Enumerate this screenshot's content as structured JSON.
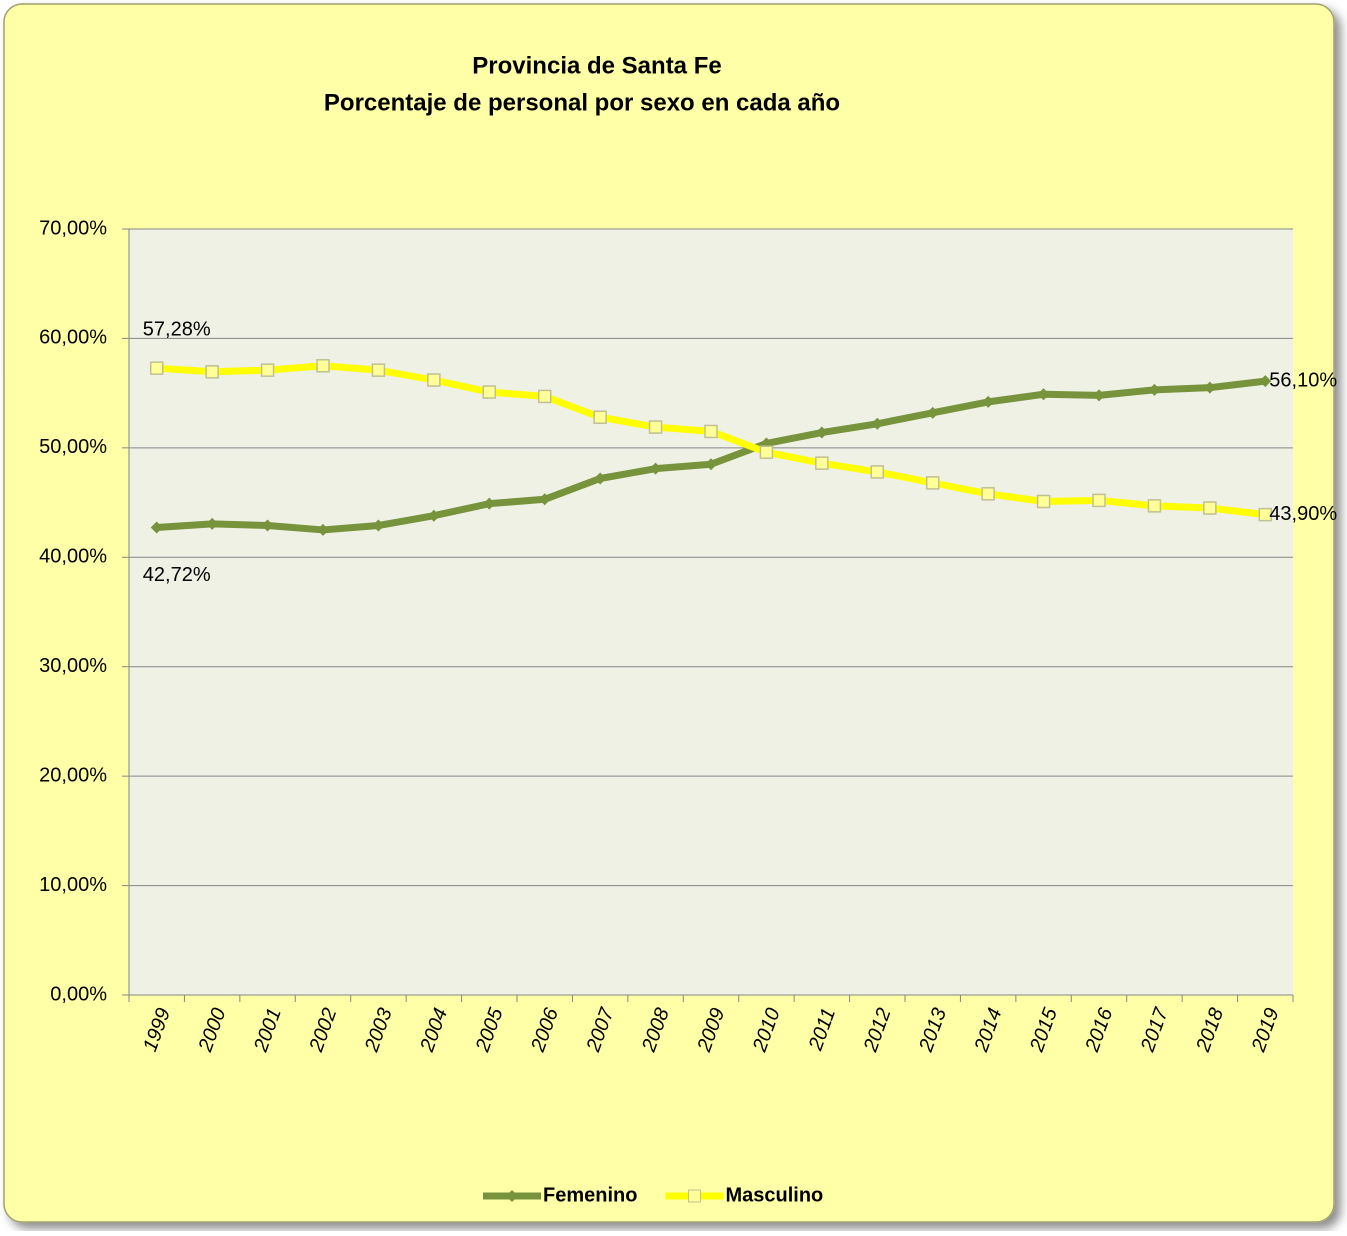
{
  "chart_data": {
    "type": "line",
    "title": [
      "Provincia de Santa Fe",
      "Porcentaje de personal por sexo en cada año"
    ],
    "categories": [
      "1999",
      "2000",
      "2001",
      "2002",
      "2003",
      "2004",
      "2005",
      "2006",
      "2007",
      "2008",
      "2009",
      "2010",
      "2011",
      "2012",
      "2013",
      "2014",
      "2015",
      "2016",
      "2017",
      "2018",
      "2019"
    ],
    "series": [
      {
        "name": "Femenino",
        "color": "#77933c",
        "marker": "diamond",
        "values": [
          42.72,
          43.05,
          42.9,
          42.5,
          42.9,
          43.8,
          44.9,
          45.3,
          47.2,
          48.1,
          48.5,
          50.4,
          51.4,
          52.2,
          53.2,
          54.2,
          54.9,
          54.8,
          55.3,
          55.5,
          56.1
        ],
        "value_labels": [
          "42,72%",
          null,
          null,
          null,
          null,
          null,
          null,
          null,
          null,
          null,
          null,
          null,
          null,
          null,
          null,
          null,
          null,
          null,
          null,
          null,
          "56,10%"
        ]
      },
      {
        "name": "Masculino",
        "color": "#ffff00",
        "marker": "square",
        "values": [
          57.28,
          56.95,
          57.1,
          57.5,
          57.1,
          56.2,
          55.1,
          54.7,
          52.8,
          51.9,
          51.5,
          49.6,
          48.6,
          47.8,
          46.8,
          45.8,
          45.1,
          45.2,
          44.7,
          44.5,
          43.9
        ],
        "value_labels": [
          "57,28%",
          null,
          null,
          null,
          null,
          null,
          null,
          null,
          null,
          null,
          null,
          null,
          null,
          null,
          null,
          null,
          null,
          null,
          null,
          null,
          "43,90%"
        ]
      }
    ],
    "ylim": [
      0,
      70
    ],
    "yticks": [
      {
        "value": 0,
        "label": "0,00%"
      },
      {
        "value": 10,
        "label": "10,00%"
      },
      {
        "value": 20,
        "label": "20,00%"
      },
      {
        "value": 30,
        "label": "30,00%"
      },
      {
        "value": 40,
        "label": "40,00%"
      },
      {
        "value": 50,
        "label": "50,00%"
      },
      {
        "value": 60,
        "label": "60,00%"
      },
      {
        "value": 70,
        "label": "70,00%"
      }
    ],
    "grid": true,
    "legend": "bottom"
  }
}
